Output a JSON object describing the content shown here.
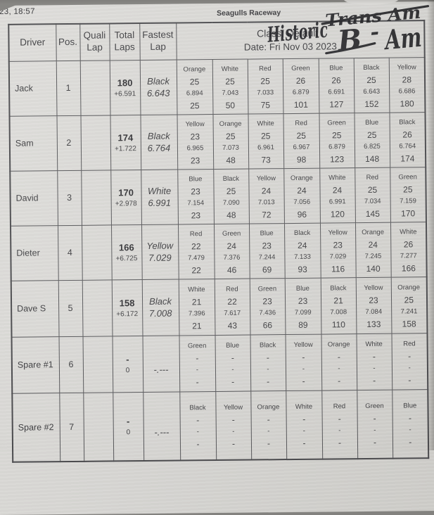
{
  "photo": {
    "timestamp": "23, 18:57"
  },
  "header": {
    "venue": "Seagulls Raceway",
    "class_line": "Class: Default",
    "date_line": "Date: Fri Nov 03 2023"
  },
  "handwriting": {
    "historic": "Historic",
    "trans_am": "Trans Am",
    "b": "B",
    "dash": "-",
    "am": "Am"
  },
  "colors": {
    "paper": "#d8d7d4",
    "ink": "#404043",
    "marker": "#1c1c20",
    "backdrop": "#83827f"
  },
  "table": {
    "columns": {
      "driver": "Driver",
      "pos": "Pos.",
      "quali": "Quali Lap",
      "total": "Total Laps",
      "fastest": "Fastest Lap"
    },
    "rows": [
      {
        "driver": "Jack",
        "pos": "1",
        "quali": "",
        "total": "180",
        "gap": "+6.591",
        "fastest_color": "Black",
        "fastest_time": "6.643",
        "lanes": [
          {
            "name": "Orange",
            "laps": "25",
            "best": "6.894",
            "cum": "25"
          },
          {
            "name": "White",
            "laps": "25",
            "best": "7.043",
            "cum": "50"
          },
          {
            "name": "Red",
            "laps": "25",
            "best": "7.033",
            "cum": "75"
          },
          {
            "name": "Green",
            "laps": "26",
            "best": "6.879",
            "cum": "101"
          },
          {
            "name": "Blue",
            "laps": "26",
            "best": "6.691",
            "cum": "127"
          },
          {
            "name": "Black",
            "laps": "25",
            "best": "6.643",
            "cum": "152"
          },
          {
            "name": "Yellow",
            "laps": "28",
            "best": "6.686",
            "cum": "180"
          }
        ]
      },
      {
        "driver": "Sam",
        "pos": "2",
        "quali": "",
        "total": "174",
        "gap": "+1.722",
        "fastest_color": "Black",
        "fastest_time": "6.764",
        "lanes": [
          {
            "name": "Yellow",
            "laps": "23",
            "best": "6.965",
            "cum": "23"
          },
          {
            "name": "Orange",
            "laps": "25",
            "best": "7.073",
            "cum": "48"
          },
          {
            "name": "White",
            "laps": "25",
            "best": "6.961",
            "cum": "73"
          },
          {
            "name": "Red",
            "laps": "25",
            "best": "6.967",
            "cum": "98"
          },
          {
            "name": "Green",
            "laps": "25",
            "best": "6.879",
            "cum": "123"
          },
          {
            "name": "Blue",
            "laps": "25",
            "best": "6.825",
            "cum": "148"
          },
          {
            "name": "Black",
            "laps": "26",
            "best": "6.764",
            "cum": "174"
          }
        ]
      },
      {
        "driver": "David",
        "pos": "3",
        "quali": "",
        "total": "170",
        "gap": "+2.978",
        "fastest_color": "White",
        "fastest_time": "6.991",
        "lanes": [
          {
            "name": "Blue",
            "laps": "23",
            "best": "7.154",
            "cum": "23"
          },
          {
            "name": "Black",
            "laps": "25",
            "best": "7.090",
            "cum": "48"
          },
          {
            "name": "Yellow",
            "laps": "24",
            "best": "7.013",
            "cum": "72"
          },
          {
            "name": "Orange",
            "laps": "24",
            "best": "7.056",
            "cum": "96"
          },
          {
            "name": "White",
            "laps": "24",
            "best": "6.991",
            "cum": "120"
          },
          {
            "name": "Red",
            "laps": "25",
            "best": "7.034",
            "cum": "145"
          },
          {
            "name": "Green",
            "laps": "25",
            "best": "7.159",
            "cum": "170"
          }
        ]
      },
      {
        "driver": "Dieter",
        "pos": "4",
        "quali": "",
        "total": "166",
        "gap": "+6.725",
        "fastest_color": "Yellow",
        "fastest_time": "7.029",
        "lanes": [
          {
            "name": "Red",
            "laps": "22",
            "best": "7.479",
            "cum": "22"
          },
          {
            "name": "Green",
            "laps": "24",
            "best": "7.376",
            "cum": "46"
          },
          {
            "name": "Blue",
            "laps": "23",
            "best": "7.244",
            "cum": "69"
          },
          {
            "name": "Black",
            "laps": "24",
            "best": "7.133",
            "cum": "93"
          },
          {
            "name": "Yellow",
            "laps": "23",
            "best": "7.029",
            "cum": "116"
          },
          {
            "name": "Orange",
            "laps": "24",
            "best": "7.245",
            "cum": "140"
          },
          {
            "name": "White",
            "laps": "26",
            "best": "7.277",
            "cum": "166"
          }
        ]
      },
      {
        "driver": "Dave S",
        "pos": "5",
        "quali": "",
        "total": "158",
        "gap": "+6.172",
        "fastest_color": "Black",
        "fastest_time": "7.008",
        "lanes": [
          {
            "name": "White",
            "laps": "21",
            "best": "7.396",
            "cum": "21"
          },
          {
            "name": "Red",
            "laps": "22",
            "best": "7.617",
            "cum": "43"
          },
          {
            "name": "Green",
            "laps": "23",
            "best": "7.436",
            "cum": "66"
          },
          {
            "name": "Blue",
            "laps": "23",
            "best": "7.099",
            "cum": "89"
          },
          {
            "name": "Black",
            "laps": "21",
            "best": "7.008",
            "cum": "110"
          },
          {
            "name": "Yellow",
            "laps": "23",
            "best": "7.084",
            "cum": "133"
          },
          {
            "name": "Orange",
            "laps": "25",
            "best": "7.241",
            "cum": "158"
          }
        ]
      },
      {
        "driver": "Spare #1",
        "pos": "6",
        "quali": "",
        "total": "-",
        "gap": "0",
        "fastest_color": "",
        "fastest_time": "-.---",
        "lanes": [
          {
            "name": "Green",
            "laps": "-",
            "best": "-",
            "cum": "-"
          },
          {
            "name": "Blue",
            "laps": "-",
            "best": "-",
            "cum": "-"
          },
          {
            "name": "Black",
            "laps": "-",
            "best": "-",
            "cum": "-"
          },
          {
            "name": "Yellow",
            "laps": "-",
            "best": "-",
            "cum": "-"
          },
          {
            "name": "Orange",
            "laps": "-",
            "best": "-",
            "cum": "-"
          },
          {
            "name": "White",
            "laps": "-",
            "best": "-",
            "cum": "-"
          },
          {
            "name": "Red",
            "laps": "-",
            "best": "-",
            "cum": "-"
          }
        ]
      },
      {
        "driver": "Spare #2",
        "pos": "7",
        "quali": "",
        "total": "-",
        "gap": "0",
        "fastest_color": "",
        "fastest_time": "-.---",
        "lanes": [
          {
            "name": "Black",
            "laps": "-",
            "best": "-",
            "cum": "-"
          },
          {
            "name": "Yellow",
            "laps": "-",
            "best": "-",
            "cum": "-"
          },
          {
            "name": "Orange",
            "laps": "-",
            "best": "-",
            "cum": "-"
          },
          {
            "name": "White",
            "laps": "-",
            "best": "-",
            "cum": "-"
          },
          {
            "name": "Red",
            "laps": "-",
            "best": "-",
            "cum": "-"
          },
          {
            "name": "Green",
            "laps": "-",
            "best": "-",
            "cum": "-"
          },
          {
            "name": "Blue",
            "laps": "-",
            "best": "-",
            "cum": "-"
          }
        ]
      }
    ]
  }
}
